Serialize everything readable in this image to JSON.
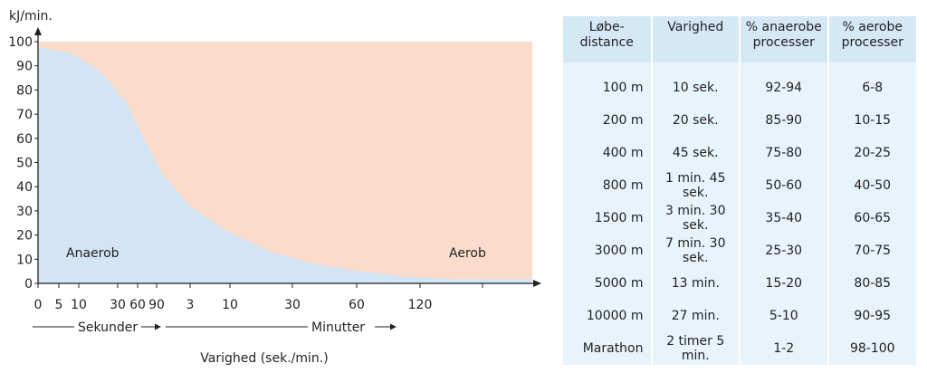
{
  "chart_data": {
    "type": "area",
    "ylabel": "kJ/min.",
    "xlabel": "Varighed (sek./min.)",
    "ylim": [
      0,
      100
    ],
    "yticks": [
      "0",
      "10",
      "20",
      "30",
      "40",
      "50",
      "60",
      "70",
      "80",
      "90",
      "100"
    ],
    "xticks": [
      "0",
      "5",
      "10",
      "30",
      "60",
      "90",
      "3",
      "10",
      "30",
      "60",
      "120",
      ""
    ],
    "x_units_note_seconds": "Sekunder",
    "x_units_note_minutes": "Minutter",
    "regions": [
      {
        "name": "Anaerob",
        "color": "#d3e4f5"
      },
      {
        "name": "Aerob",
        "color": "#fbdccb"
      }
    ],
    "total_level": 100,
    "anaerob_curve_tickindex_kJ": [
      [
        0,
        98
      ],
      [
        1.68,
        95
      ],
      [
        2.53,
        88
      ],
      [
        3.45,
        75
      ],
      [
        4.33,
        60
      ],
      [
        5.19,
        45
      ],
      [
        6,
        32
      ],
      [
        6.9,
        22
      ],
      [
        7.67,
        13
      ],
      [
        8.38,
        8
      ],
      [
        9.08,
        5
      ],
      [
        9.8,
        3
      ],
      [
        10.52,
        2
      ],
      [
        11.8,
        2
      ]
    ]
  },
  "table": {
    "headers": [
      [
        "Løbe-",
        "distance"
      ],
      [
        "Varighed",
        ""
      ],
      [
        "% anaerobe",
        "processer"
      ],
      [
        "% aerobe",
        "processer"
      ]
    ],
    "rows": [
      [
        "100 m",
        "10 sek.",
        "92-94",
        "6-8"
      ],
      [
        "200 m",
        "20 sek.",
        "85-90",
        "10-15"
      ],
      [
        "400 m",
        "45 sek.",
        "75-80",
        "20-25"
      ],
      [
        "800 m",
        "1 min. 45 sek.",
        "50-60",
        "40-50"
      ],
      [
        "1500 m",
        "3 min. 30 sek.",
        "35-40",
        "60-65"
      ],
      [
        "3000 m",
        "7 min. 30 sek.",
        "25-30",
        "70-75"
      ],
      [
        "5000 m",
        "13 min.",
        "15-20",
        "80-85"
      ],
      [
        "10000 m",
        "27 min.",
        "5-10",
        "90-95"
      ],
      [
        "Marathon",
        "2 timer 5 min.",
        "1-2",
        "98-100"
      ]
    ]
  }
}
